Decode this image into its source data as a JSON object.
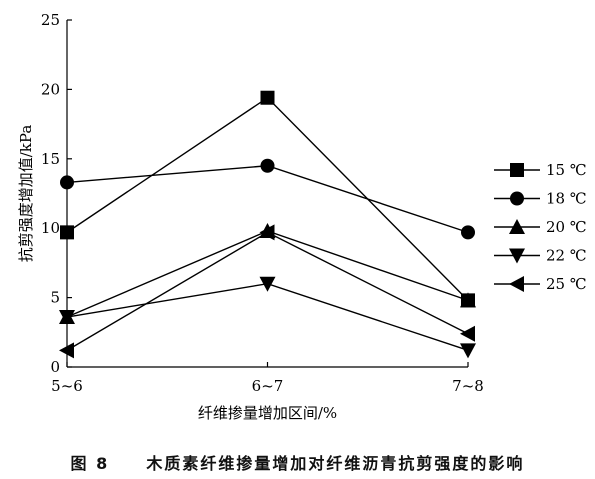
{
  "caption": {
    "label": "图 8",
    "text": "木质素纤维掺量增加对纤维沥青抗剪强度的影响"
  },
  "chart_data": {
    "type": "line",
    "title": "",
    "xlabel": "纤维掺量增加区间/%",
    "ylabel": "抗剪强度增加值/kPa",
    "categories": [
      "5~6",
      "6~7",
      "7~8"
    ],
    "ylim": [
      0,
      25
    ],
    "yticks": [
      0,
      5,
      10,
      15,
      20,
      25
    ],
    "grid": false,
    "legend_position": "right",
    "series": [
      {
        "name": "15 ℃",
        "marker": "square",
        "values": [
          9.7,
          19.4,
          4.8
        ]
      },
      {
        "name": "18 ℃",
        "marker": "circle",
        "values": [
          13.3,
          14.5,
          9.7
        ]
      },
      {
        "name": "20 ℃",
        "marker": "triangle-up",
        "values": [
          3.6,
          9.8,
          4.8
        ]
      },
      {
        "name": "22 ℃",
        "marker": "triangle-down",
        "values": [
          3.6,
          6.0,
          1.2
        ]
      },
      {
        "name": "25 ℃",
        "marker": "triangle-left",
        "values": [
          1.2,
          9.7,
          2.4
        ]
      }
    ]
  }
}
